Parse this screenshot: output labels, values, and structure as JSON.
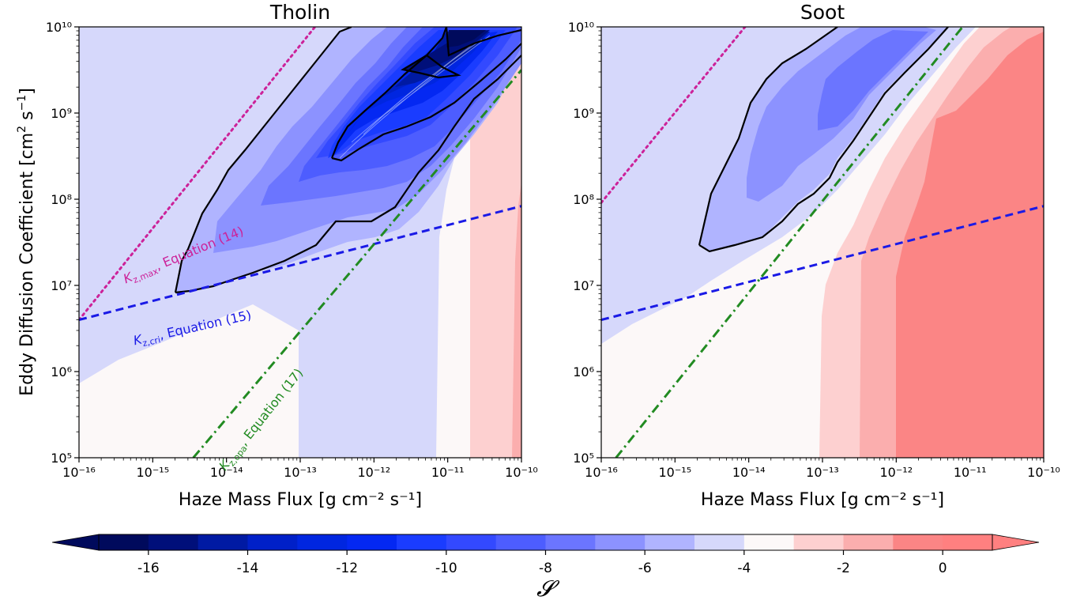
{
  "figure": {
    "ylabel": "Eddy Diffusion Coefficient [cm",
    "ylabel_sup1": "2",
    "ylabel_mid": " s",
    "ylabel_sup2": "−1",
    "ylabel_end": "]",
    "colorbar_label": "𝓢"
  },
  "chart_data": [
    {
      "type": "contour",
      "title": "Tholin",
      "xlabel": "Haze Mass Flux [g cm⁻² s⁻¹]",
      "xscale": "log",
      "yscale": "log",
      "xlim": [
        1e-16,
        1e-10
      ],
      "ylim": [
        100000.0,
        10000000000.0
      ],
      "x_tick_labels": [
        "10⁻¹⁶",
        "10⁻¹⁵",
        "10⁻¹⁴",
        "10⁻¹³",
        "10⁻¹²",
        "10⁻¹¹",
        "10⁻¹⁰"
      ],
      "y_tick_labels": [
        "10⁵",
        "10⁶",
        "10⁷",
        "10⁸",
        "10⁹",
        "10¹⁰"
      ],
      "lines": [
        {
          "name": "K_z,max",
          "label": "Equation (14)",
          "style": "dotted",
          "color": "#cc2299",
          "points": [
            [
              -16,
              6.6
            ],
            [
              -12.8,
              10
            ]
          ]
        },
        {
          "name": "K_z,cri",
          "label": "Equation (15)",
          "style": "dashed",
          "color": "#1a1ae6",
          "points": [
            [
              -16,
              6.6
            ],
            [
              -10,
              7.92
            ]
          ]
        },
        {
          "name": "K_z,opa",
          "label": "Equation (17)",
          "style": "dashdot",
          "color": "#228b22",
          "points": [
            [
              -14.45,
              5
            ],
            [
              -10,
              9.5
            ]
          ]
        }
      ],
      "annotations": [
        {
          "main": "K",
          "sub": "z,max",
          "rest": ", Equation (14)",
          "color": "#cc2299"
        },
        {
          "main": "K",
          "sub": "z,cri",
          "rest": ", Equation (15)",
          "color": "#1a1ae6"
        },
        {
          "main": "K",
          "sub": "z,opa",
          "rest": ", Equation (17)",
          "color": "#228b22"
        }
      ]
    },
    {
      "type": "contour",
      "title": "Soot",
      "xlabel": "Haze Mass Flux [g cm⁻² s⁻¹]",
      "xscale": "log",
      "yscale": "log",
      "xlim": [
        1e-16,
        1e-10
      ],
      "ylim": [
        100000.0,
        10000000000.0
      ],
      "x_tick_labels": [
        "10⁻¹⁶",
        "10⁻¹⁵",
        "10⁻¹⁴",
        "10⁻¹³",
        "10⁻¹²",
        "10⁻¹¹",
        "10⁻¹⁰"
      ],
      "y_tick_labels": [
        "10⁵",
        "10⁶",
        "10⁷",
        "10⁸",
        "10⁹",
        "10¹⁰"
      ],
      "lines": [
        {
          "name": "K_z,max",
          "style": "dotted",
          "color": "#cc2299",
          "points": [
            [
              -16,
              7.96
            ],
            [
              -14.05,
              10
            ]
          ]
        },
        {
          "name": "K_z,cri",
          "style": "dashed",
          "color": "#1a1ae6",
          "points": [
            [
              -16,
              6.6
            ],
            [
              -10,
              7.92
            ]
          ]
        },
        {
          "name": "K_z,opa",
          "style": "dashdot",
          "color": "#228b22",
          "points": [
            [
              -15.8,
              5
            ],
            [
              -11.1,
              10
            ]
          ]
        }
      ]
    }
  ],
  "colorbar": {
    "levels": [
      -17,
      -16,
      -15,
      -14,
      -13,
      -12,
      -11,
      -10,
      -9,
      -8,
      -7,
      -6,
      -5,
      -4,
      -3,
      -2,
      -1,
      0,
      1
    ],
    "colors": [
      "#000a5c",
      "#000f7a",
      "#001aa3",
      "#0020c8",
      "#0026e0",
      "#0428f2",
      "#1a3cff",
      "#3349ff",
      "#4d5dff",
      "#6b75ff",
      "#8c92ff",
      "#b0b4ff",
      "#d6d8fb",
      "#fcf8f8",
      "#fdd0d0",
      "#fbaeae",
      "#fb8585",
      "#ff8080"
    ],
    "tick_labels": [
      "-16",
      "-14",
      "-12",
      "-10",
      "-8",
      "-6",
      "-4",
      "-2",
      "0"
    ]
  }
}
